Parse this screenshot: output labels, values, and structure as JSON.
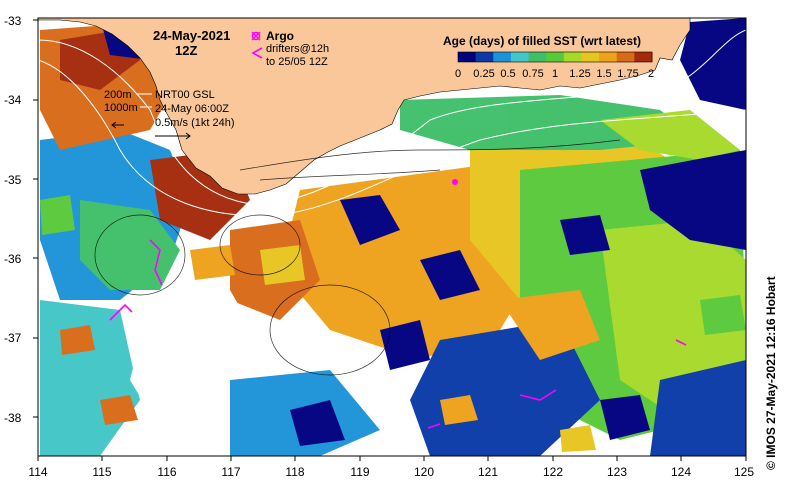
{
  "map": {
    "date_line1": "24-May-2021",
    "date_line2": "12Z",
    "legend_argo": "Argo",
    "legend_drifters_line1": "drifters@12h",
    "legend_drifters_line2": "to 25/05 12Z",
    "contour_200": "200m",
    "contour_1000": "1000m",
    "product_name": "NRT00 GSL",
    "product_time": "24-May 06:00Z",
    "vector_scale": "0.5m/s (1kt 24h)",
    "colorbar_title": "Age (days) of filled SST (wrt latest)",
    "colorbar_ticks": [
      "0",
      "0.25",
      "0.5",
      "0.75",
      "1",
      "1.25",
      "1.5",
      "1.75",
      "2"
    ],
    "lat_labels": [
      "-33",
      "-34",
      "-35",
      "-36",
      "-37",
      "-38"
    ],
    "lon_labels": [
      "114",
      "115",
      "116",
      "117",
      "118",
      "119",
      "120",
      "121",
      "122",
      "123",
      "124",
      "125"
    ],
    "credit": "© IMOS 27-May-2021 12:16 Hobart",
    "colors": {
      "land": "#f9c79a",
      "argo": "#ff00ff",
      "ocean_bg": "#ffffff",
      "scale": [
        "#00007f",
        "#0b3aa8",
        "#1c93d9",
        "#43c6c8",
        "#3fbf6a",
        "#58c93a",
        "#a6d92a",
        "#e7c51f",
        "#eea21a",
        "#d86a18",
        "#a52a0b"
      ]
    }
  }
}
